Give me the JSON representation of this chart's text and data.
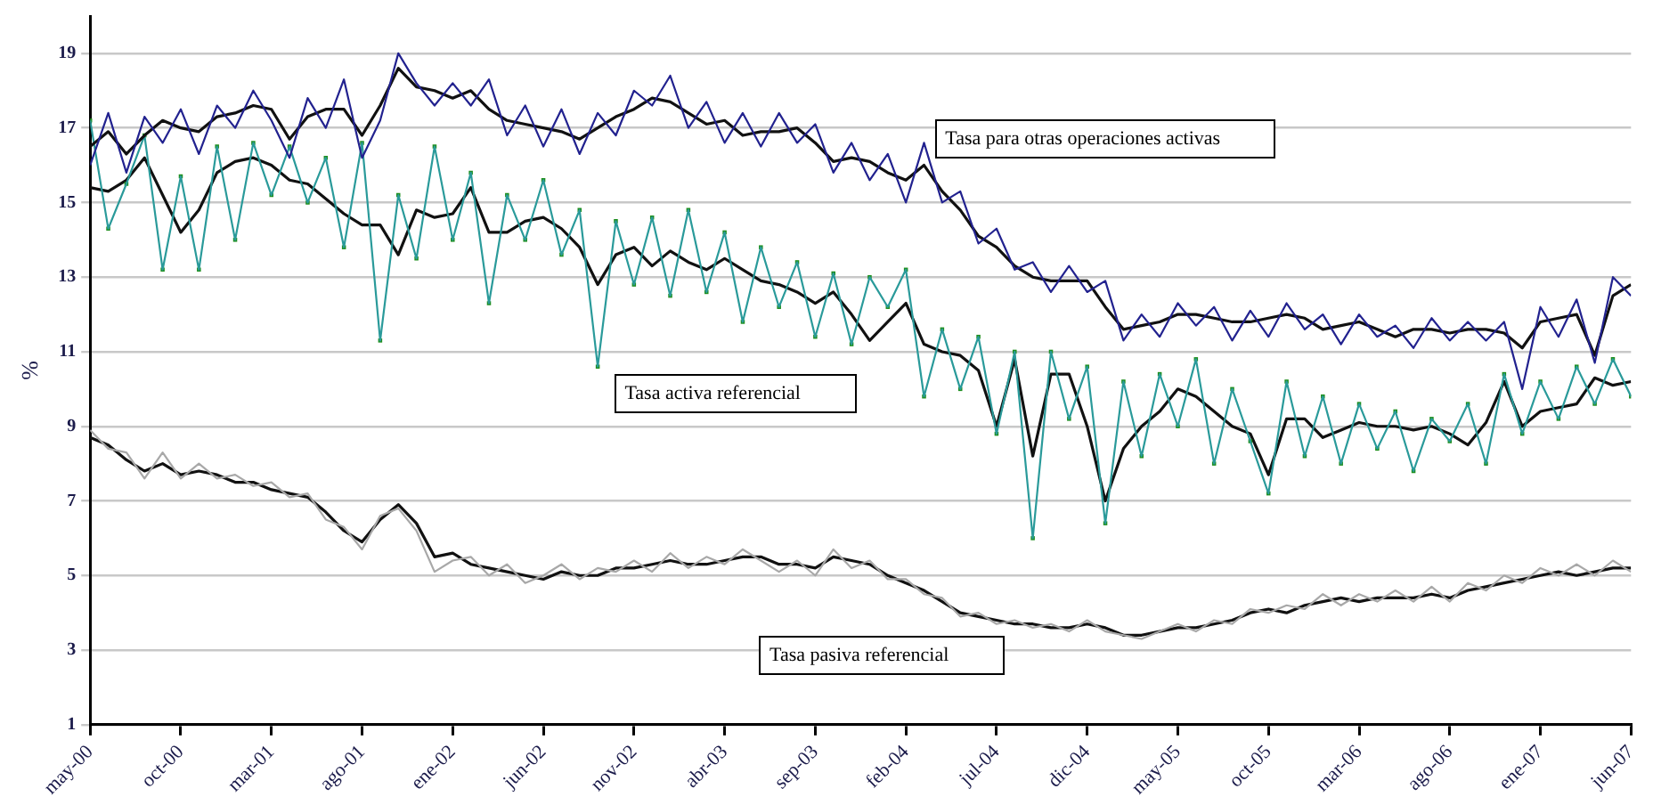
{
  "chart_data": {
    "type": "line",
    "ylabel": "%",
    "x": [
      "2000-05",
      "2000-06",
      "2000-07",
      "2000-08",
      "2000-09",
      "2000-10",
      "2000-11",
      "2000-12",
      "2001-01",
      "2001-02",
      "2001-03",
      "2001-04",
      "2001-05",
      "2001-06",
      "2001-07",
      "2001-08",
      "2001-09",
      "2001-10",
      "2001-11",
      "2001-12",
      "2002-01",
      "2002-02",
      "2002-03",
      "2002-04",
      "2002-05",
      "2002-06",
      "2002-07",
      "2002-08",
      "2002-09",
      "2002-10",
      "2002-11",
      "2002-12",
      "2003-01",
      "2003-02",
      "2003-03",
      "2003-04",
      "2003-05",
      "2003-06",
      "2003-07",
      "2003-08",
      "2003-09",
      "2003-10",
      "2003-11",
      "2003-12",
      "2004-01",
      "2004-02",
      "2004-03",
      "2004-04",
      "2004-05",
      "2004-06",
      "2004-07",
      "2004-08",
      "2004-09",
      "2004-10",
      "2004-11",
      "2004-12",
      "2005-01",
      "2005-02",
      "2005-03",
      "2005-04",
      "2005-05",
      "2005-06",
      "2005-07",
      "2005-08",
      "2005-09",
      "2005-10",
      "2005-11",
      "2005-12",
      "2006-01",
      "2006-02",
      "2006-03",
      "2006-04",
      "2006-05",
      "2006-06",
      "2006-07",
      "2006-08",
      "2006-09",
      "2006-10",
      "2006-11",
      "2006-12",
      "2007-01",
      "2007-02",
      "2007-03",
      "2007-04",
      "2007-05",
      "2007-06"
    ],
    "series": [
      {
        "color": "#22228f",
        "values": [
          16.0,
          17.4,
          15.8,
          17.3,
          16.6,
          17.5,
          16.3,
          17.6,
          17.0,
          18.0,
          17.2,
          16.2,
          17.8,
          17.0,
          18.3,
          16.2,
          17.2,
          19.0,
          18.2,
          17.6,
          18.2,
          17.6,
          18.3,
          16.8,
          17.6,
          16.5,
          17.5,
          16.3,
          17.4,
          16.8,
          18.0,
          17.6,
          18.4,
          17.0,
          17.7,
          16.6,
          17.4,
          16.5,
          17.4,
          16.6,
          17.1,
          15.8,
          16.6,
          15.6,
          16.3,
          15.0,
          16.6,
          15.0,
          15.3,
          13.9,
          14.3,
          13.2,
          13.4,
          12.6,
          13.3,
          12.6,
          12.9,
          11.3,
          12.0,
          11.4,
          12.3,
          11.7,
          12.2,
          11.3,
          12.1,
          11.4,
          12.3,
          11.6,
          12.0,
          11.2,
          12.0,
          11.4,
          11.7,
          11.1,
          11.9,
          11.3,
          11.8,
          11.3,
          11.8,
          10.0,
          12.2,
          11.4,
          12.4,
          10.7,
          13.0,
          12.5
        ]
      },
      {
        "color": "#111111",
        "values": [
          16.5,
          16.9,
          16.3,
          16.8,
          17.2,
          17.0,
          16.9,
          17.3,
          17.4,
          17.6,
          17.5,
          16.7,
          17.3,
          17.5,
          17.5,
          16.8,
          17.6,
          18.6,
          18.1,
          18.0,
          17.8,
          18.0,
          17.5,
          17.2,
          17.1,
          17.0,
          16.9,
          16.7,
          17.0,
          17.3,
          17.5,
          17.8,
          17.7,
          17.4,
          17.1,
          17.2,
          16.8,
          16.9,
          16.9,
          17.0,
          16.6,
          16.1,
          16.2,
          16.1,
          15.8,
          15.6,
          16.0,
          15.3,
          14.8,
          14.1,
          13.8,
          13.3,
          13.0,
          12.9,
          12.9,
          12.9,
          12.2,
          11.6,
          11.7,
          11.8,
          12.0,
          12.0,
          11.9,
          11.8,
          11.8,
          11.9,
          12.0,
          11.9,
          11.6,
          11.7,
          11.8,
          11.6,
          11.4,
          11.6,
          11.6,
          11.5,
          11.6,
          11.6,
          11.5,
          11.1,
          11.8,
          11.9,
          12.0,
          10.9,
          12.5,
          12.8
        ]
      },
      {
        "color": "#2a9a9a",
        "values": [
          17.2,
          14.3,
          15.5,
          16.8,
          13.2,
          15.7,
          13.2,
          16.5,
          14.0,
          16.6,
          15.2,
          16.5,
          15.0,
          16.2,
          13.8,
          16.6,
          11.3,
          15.2,
          13.5,
          16.5,
          14.0,
          15.8,
          12.3,
          15.2,
          14.0,
          15.6,
          13.6,
          14.8,
          10.6,
          14.5,
          12.8,
          14.6,
          12.5,
          14.8,
          12.6,
          14.2,
          11.8,
          13.8,
          12.2,
          13.4,
          11.4,
          13.1,
          11.2,
          13.0,
          12.2,
          13.2,
          9.8,
          11.6,
          10.0,
          11.4,
          8.8,
          11.0,
          6.0,
          11.0,
          9.2,
          10.6,
          6.4,
          10.2,
          8.2,
          10.4,
          9.0,
          10.8,
          8.0,
          10.0,
          8.6,
          7.2,
          10.2,
          8.2,
          9.8,
          8.0,
          9.6,
          8.4,
          9.4,
          7.8,
          9.2,
          8.6,
          9.6,
          8.0,
          10.4,
          8.8,
          10.2,
          9.2,
          10.6,
          9.6,
          10.8,
          9.8
        ]
      },
      {
        "type": "scatter",
        "marker": "square",
        "color": "#1f8f1f",
        "values": [
          17.2,
          14.3,
          15.5,
          16.8,
          13.2,
          15.7,
          13.2,
          16.5,
          14.0,
          16.6,
          15.2,
          16.5,
          15.0,
          16.2,
          13.8,
          16.6,
          11.3,
          15.2,
          13.5,
          16.5,
          14.0,
          15.8,
          12.3,
          15.2,
          14.0,
          15.6,
          13.6,
          14.8,
          10.6,
          14.5,
          12.8,
          14.6,
          12.5,
          14.8,
          12.6,
          14.2,
          11.8,
          13.8,
          12.2,
          13.4,
          11.4,
          13.1,
          11.2,
          13.0,
          12.2,
          13.2,
          9.8,
          11.6,
          10.0,
          11.4,
          8.8,
          11.0,
          6.0,
          11.0,
          9.2,
          10.6,
          6.4,
          10.2,
          8.2,
          10.4,
          9.0,
          10.8,
          8.0,
          10.0,
          8.6,
          7.2,
          10.2,
          8.2,
          9.8,
          8.0,
          9.6,
          8.4,
          9.4,
          7.8,
          9.2,
          8.6,
          9.6,
          8.0,
          10.4,
          8.8,
          10.2,
          9.2,
          10.6,
          9.6,
          10.8,
          9.8
        ]
      },
      {
        "color": "#111111",
        "values": [
          15.4,
          15.3,
          15.6,
          16.2,
          15.2,
          14.2,
          14.8,
          15.8,
          16.1,
          16.2,
          16.0,
          15.6,
          15.5,
          15.1,
          14.7,
          14.4,
          14.4,
          13.6,
          14.8,
          14.6,
          14.7,
          15.4,
          14.2,
          14.2,
          14.5,
          14.6,
          14.3,
          13.8,
          12.8,
          13.6,
          13.8,
          13.3,
          13.7,
          13.4,
          13.2,
          13.5,
          13.2,
          12.9,
          12.8,
          12.6,
          12.3,
          12.6,
          12.0,
          11.3,
          11.8,
          12.3,
          11.2,
          11.0,
          10.9,
          10.5,
          9.0,
          10.8,
          8.2,
          10.4,
          10.4,
          9.0,
          7.0,
          8.4,
          9.0,
          9.4,
          10.0,
          9.8,
          9.4,
          9.0,
          8.8,
          7.7,
          9.2,
          9.2,
          8.7,
          8.9,
          9.1,
          9.0,
          9.0,
          8.9,
          9.0,
          8.8,
          8.5,
          9.1,
          10.2,
          9.0,
          9.4,
          9.5,
          9.6,
          10.3,
          10.1,
          10.2
        ]
      },
      {
        "color": "#a8a8a8",
        "values": [
          8.9,
          8.4,
          8.3,
          7.6,
          8.3,
          7.6,
          8.0,
          7.6,
          7.7,
          7.4,
          7.5,
          7.1,
          7.2,
          6.5,
          6.3,
          5.7,
          6.6,
          6.8,
          6.2,
          5.1,
          5.4,
          5.5,
          5.0,
          5.3,
          4.8,
          5.0,
          5.3,
          4.9,
          5.2,
          5.1,
          5.4,
          5.1,
          5.6,
          5.2,
          5.5,
          5.3,
          5.7,
          5.4,
          5.1,
          5.4,
          5.0,
          5.7,
          5.2,
          5.4,
          4.9,
          4.9,
          4.5,
          4.4,
          3.9,
          4.0,
          3.7,
          3.8,
          3.6,
          3.7,
          3.5,
          3.8,
          3.5,
          3.4,
          3.3,
          3.5,
          3.7,
          3.5,
          3.8,
          3.7,
          4.1,
          4.0,
          4.2,
          4.1,
          4.5,
          4.2,
          4.5,
          4.3,
          4.6,
          4.3,
          4.7,
          4.3,
          4.8,
          4.6,
          5.0,
          4.8,
          5.2,
          5.0,
          5.3,
          5.0,
          5.4,
          5.1
        ]
      },
      {
        "color": "#111111",
        "values": [
          8.7,
          8.5,
          8.1,
          7.8,
          8.0,
          7.7,
          7.8,
          7.7,
          7.5,
          7.5,
          7.3,
          7.2,
          7.1,
          6.7,
          6.2,
          5.9,
          6.5,
          6.9,
          6.4,
          5.5,
          5.6,
          5.3,
          5.2,
          5.1,
          5.0,
          4.9,
          5.1,
          5.0,
          5.0,
          5.2,
          5.2,
          5.3,
          5.4,
          5.3,
          5.3,
          5.4,
          5.5,
          5.5,
          5.3,
          5.3,
          5.2,
          5.5,
          5.4,
          5.3,
          5.0,
          4.8,
          4.6,
          4.3,
          4.0,
          3.9,
          3.8,
          3.7,
          3.7,
          3.6,
          3.6,
          3.7,
          3.6,
          3.4,
          3.4,
          3.5,
          3.6,
          3.6,
          3.7,
          3.8,
          4.0,
          4.1,
          4.0,
          4.2,
          4.3,
          4.4,
          4.3,
          4.4,
          4.4,
          4.4,
          4.5,
          4.4,
          4.6,
          4.7,
          4.8,
          4.9,
          5.0,
          5.1,
          5.0,
          5.1,
          5.2,
          5.2
        ]
      }
    ],
    "xlim": [
      "2000-05",
      "2007-06"
    ],
    "xticks": [
      {
        "value": "2000-05",
        "label": "may-00"
      },
      {
        "value": "2000-10",
        "label": "oct-00"
      },
      {
        "value": "2001-03",
        "label": "mar-01"
      },
      {
        "value": "2001-08",
        "label": "ago-01"
      },
      {
        "value": "2002-01",
        "label": "ene-02"
      },
      {
        "value": "2002-06",
        "label": "jun-02"
      },
      {
        "value": "2002-11",
        "label": "nov-02"
      },
      {
        "value": "2003-04",
        "label": "abr-03"
      },
      {
        "value": "2003-09",
        "label": "sep-03"
      },
      {
        "value": "2004-02",
        "label": "feb-04"
      },
      {
        "value": "2004-07",
        "label": "jul-04"
      },
      {
        "value": "2004-12",
        "label": "dic-04"
      },
      {
        "value": "2005-05",
        "label": "may-05"
      },
      {
        "value": "2005-10",
        "label": "oct-05"
      },
      {
        "value": "2006-03",
        "label": "mar-06"
      },
      {
        "value": "2006-08",
        "label": "ago-06"
      },
      {
        "value": "2007-01",
        "label": "ene-07"
      },
      {
        "value": "2007-06",
        "label": "jun-07"
      }
    ],
    "ylim": [
      1,
      20
    ],
    "yticks": [
      1,
      3,
      5,
      7,
      9,
      11,
      13,
      15,
      17,
      19
    ],
    "grid": "y",
    "legend": false,
    "marker": "none",
    "line_style": "solid",
    "annotations": [
      "Tasa para otras operaciones activas",
      "Tasa activa referencial",
      "Tasa pasiva referencial"
    ]
  }
}
